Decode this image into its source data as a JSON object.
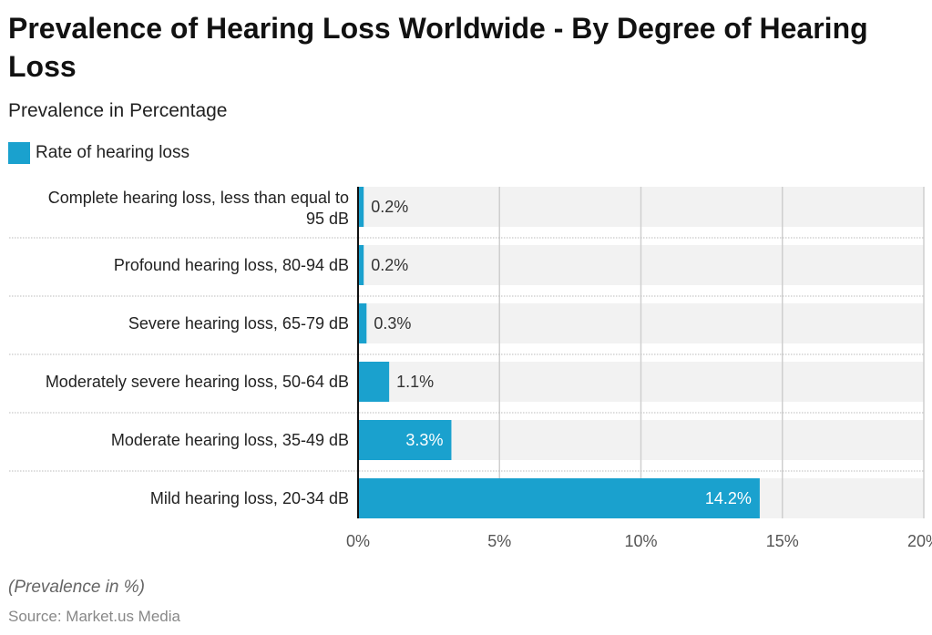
{
  "chart_data": {
    "type": "bar",
    "orientation": "horizontal",
    "title": "Prevalence of Hearing Loss Worldwide - By Degree of Hearing Loss",
    "subtitle": "Prevalence in Percentage",
    "categories": [
      "Complete hearing loss, less than equal to 95 dB",
      "Profound hearing loss, 80-94 dB",
      "Severe hearing loss, 65-79 dB",
      "Moderately severe hearing loss, 50-64 dB",
      "Moderate hearing loss, 35-49 dB",
      "Mild hearing loss, 20-34 dB"
    ],
    "series": [
      {
        "name": "Rate of hearing loss",
        "values": [
          0.2,
          0.2,
          0.3,
          1.1,
          3.3,
          14.2
        ],
        "color": "#1aa1ce"
      }
    ],
    "data_labels": [
      "0.2%",
      "0.2%",
      "0.3%",
      "1.1%",
      "3.3%",
      "14.2%"
    ],
    "xlim": [
      0,
      20
    ],
    "xticks": [
      "0%",
      "5%",
      "10%",
      "15%",
      "20%"
    ],
    "grid": true,
    "legend_position": "top-left",
    "note": "(Prevalence in %)",
    "source": "Source: Market.us Media"
  }
}
